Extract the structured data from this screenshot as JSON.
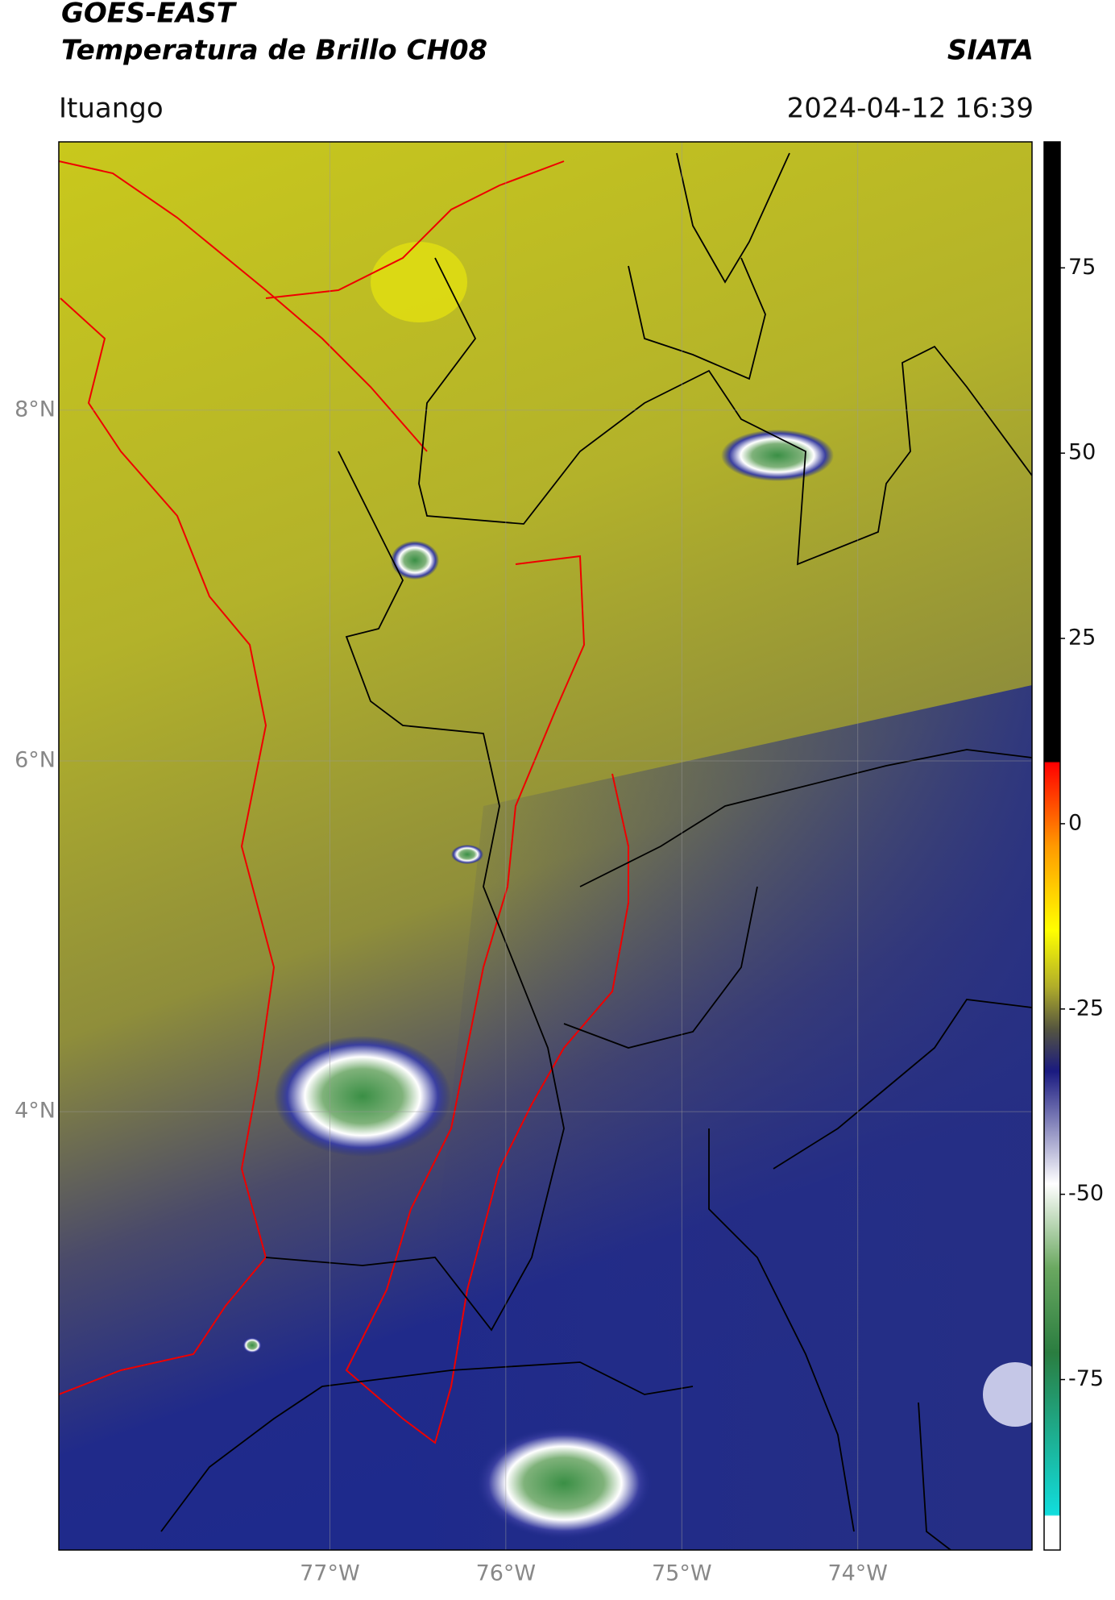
{
  "header": {
    "title": "GOES-EAST",
    "subtitle": "Temperatura de Brillo CH08",
    "source": "SIATA",
    "location": "Ituango",
    "timestamp": "2024-04-12 16:39"
  },
  "map": {
    "xlim": [
      -78.54,
      -73.01
    ],
    "ylim": [
      1.5,
      9.53
    ],
    "xticks": [
      {
        "value": -77,
        "label": "77°W"
      },
      {
        "value": -76,
        "label": "76°W"
      },
      {
        "value": -75,
        "label": "75°W"
      },
      {
        "value": -74,
        "label": "74°W"
      }
    ],
    "yticks": [
      {
        "value": 8,
        "label": "8°N"
      },
      {
        "value": 6,
        "label": "6°N"
      },
      {
        "value": 4,
        "label": "4°N"
      }
    ],
    "grid": true
  },
  "colorbar": {
    "lim": [
      -98,
      92
    ],
    "ticks": [
      75,
      50,
      25,
      0,
      -25,
      -50,
      -75
    ]
  }
}
